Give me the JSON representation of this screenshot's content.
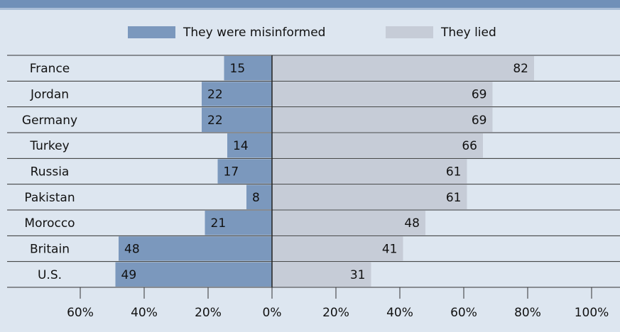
{
  "chart_data": {
    "type": "diverging-bar",
    "categories": [
      "France",
      "Jordan",
      "Germany",
      "Turkey",
      "Russia",
      "Pakistan",
      "Morocco",
      "Britain",
      "U.S."
    ],
    "series": [
      {
        "name": "They were misinformed",
        "color": "#7b98bd",
        "side": "left",
        "values": [
          15,
          22,
          22,
          14,
          17,
          8,
          21,
          48,
          49
        ]
      },
      {
        "name": "They lied",
        "color": "#c6ccd7",
        "side": "right",
        "values": [
          82,
          69,
          69,
          66,
          61,
          61,
          48,
          41,
          31
        ]
      }
    ],
    "xlim": [
      -80,
      110
    ],
    "xticks": [
      {
        "value": -60,
        "label": "60%"
      },
      {
        "value": -40,
        "label": "40%"
      },
      {
        "value": -20,
        "label": "20%"
      },
      {
        "value": 0,
        "label": "0%"
      },
      {
        "value": 20,
        "label": "20%"
      },
      {
        "value": 40,
        "label": "40%"
      },
      {
        "value": 60,
        "label": "60%"
      },
      {
        "value": 80,
        "label": "80%"
      },
      {
        "value": 100,
        "label": "100%"
      }
    ]
  }
}
